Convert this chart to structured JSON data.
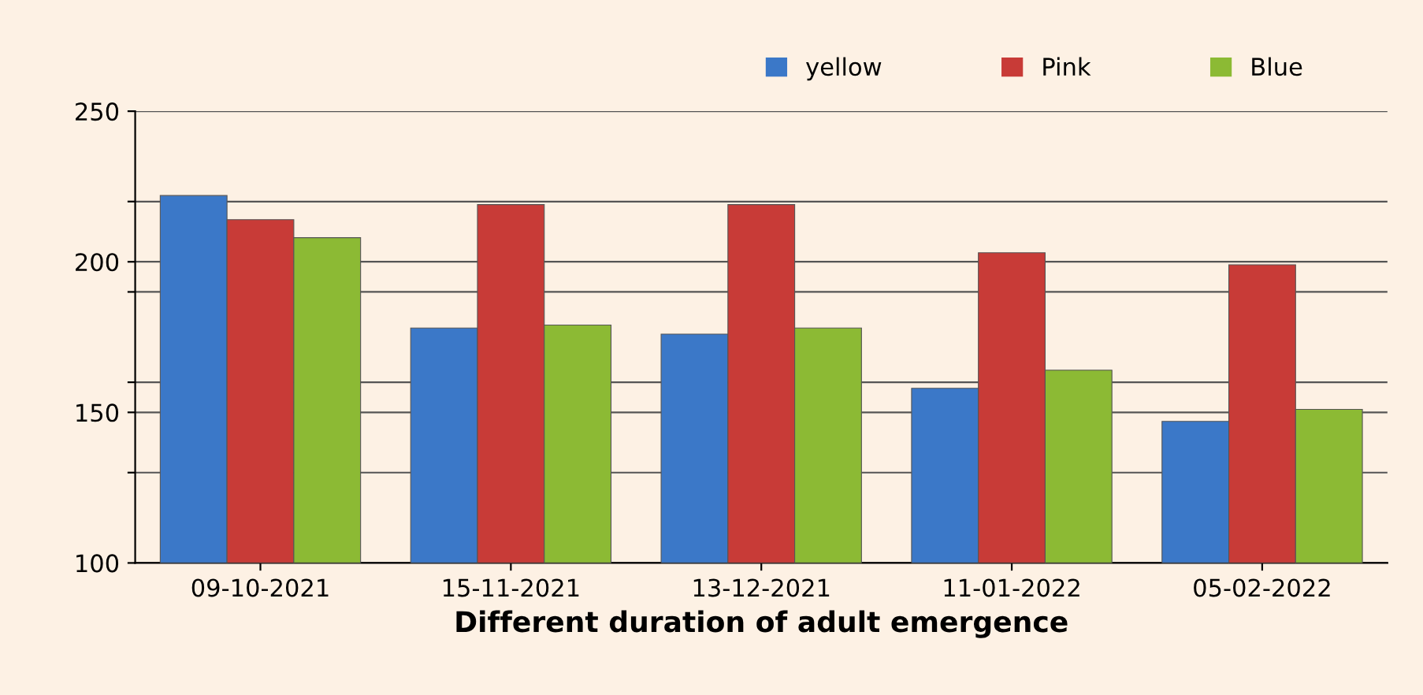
{
  "chart_data": {
    "type": "bar",
    "xlabel": "Different duration of adult emergence",
    "categories": [
      "09-10-2021",
      "15-11-2021",
      "13-12-2021",
      "11-01-2022",
      "05-02-2022"
    ],
    "series": [
      {
        "name": "yellow",
        "color": "#3b78c8",
        "values": [
          222,
          178,
          176,
          158,
          147
        ]
      },
      {
        "name": "Pink",
        "color": "#c83b37",
        "values": [
          214,
          219,
          219,
          203,
          199
        ]
      },
      {
        "name": "Blue",
        "color": "#8cba34",
        "values": [
          208,
          179,
          178,
          164,
          151
        ]
      }
    ],
    "ylim": [
      100,
      250
    ],
    "yticks": [
      100,
      {
        "value": 130,
        "label": null
      },
      150,
      {
        "value": 160,
        "label": null
      },
      {
        "value": 190,
        "label": null
      },
      200,
      {
        "value": 220,
        "label": null
      },
      250
    ],
    "grid": "y",
    "legend": "top right"
  }
}
